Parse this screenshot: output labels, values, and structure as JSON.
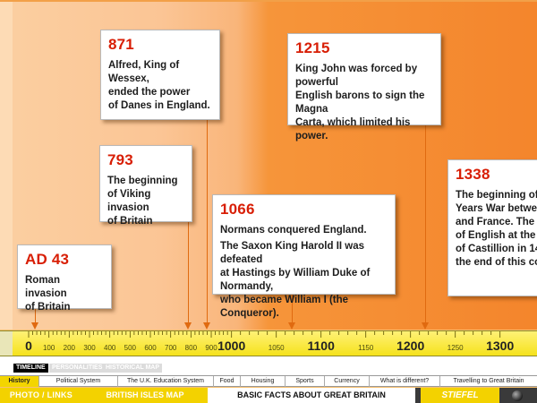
{
  "events": [
    {
      "year": "AD 43",
      "lines": [
        "Roman invasion\nof Britain"
      ]
    },
    {
      "year": "871",
      "lines": [
        "Alfred, King of Wessex,\n ended the power\nof Danes in England."
      ]
    },
    {
      "year": "793",
      "lines": [
        "The beginning\nof Viking invasion\nof Britain"
      ]
    },
    {
      "year": "1215",
      "lines": [
        "King John was forced by powerful\nEnglish barons to sign the Magna\nCarta, which limited his power."
      ]
    },
    {
      "year": "1066",
      "lines": [
        "Normans conquered England.",
        "The Saxon King Harold II was defeated\nat Hastings by William Duke of Normandy,\nwho became William I (the Conqueror)."
      ]
    },
    {
      "year": "1338",
      "lines": [
        "The beginning of\nYears War betwee\nand France. The f\nof English at the B\nof Castillion in 14\nthe end of this co"
      ]
    }
  ],
  "ruler": {
    "labels": [
      "0",
      "100",
      "200",
      "300",
      "400",
      "500",
      "600",
      "700",
      "800",
      "900",
      "1000",
      "1050",
      "1100",
      "1150",
      "1200",
      "1250",
      "1300"
    ],
    "major": [
      "0",
      "1000",
      "1100",
      "1200",
      "1300"
    ]
  },
  "toggles": {
    "timeline": "TIMELINE",
    "personalities": "PERSONALITIES",
    "map": "HISTORICAL MAP"
  },
  "nav": [
    "History",
    "Political System",
    "The U.K. Education System",
    "Food",
    "Housing",
    "Sports",
    "Currency",
    "What is different?",
    "Travelling to Great Britain"
  ],
  "bottom": {
    "photo": "PHOTO / LINKS",
    "isles": "BRITISH ISLES MAP",
    "title": "BASIC FACTS ABOUT GREAT BRITAIN",
    "logo": "STIEFEL"
  }
}
